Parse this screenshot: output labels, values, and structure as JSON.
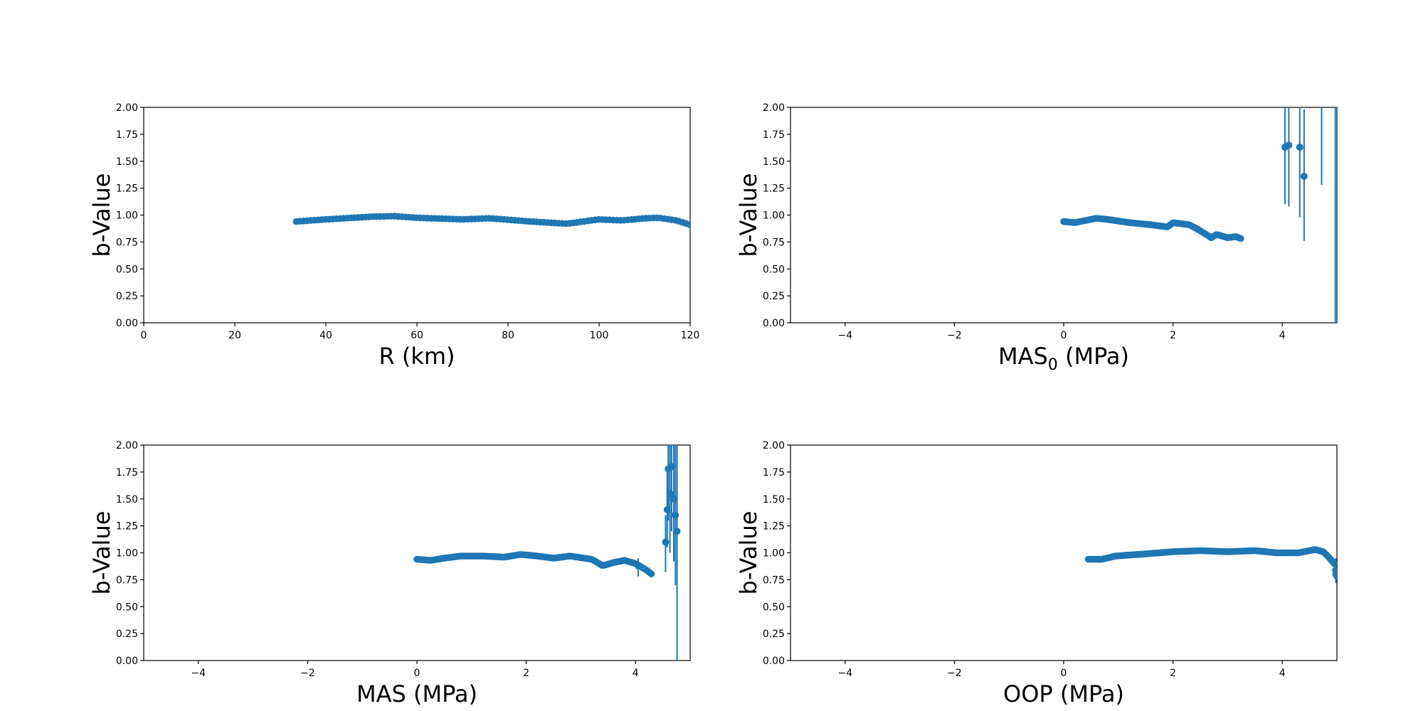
{
  "chart_data": [
    {
      "type": "scatter",
      "xlabel": "R (km)",
      "ylabel": "b-Value",
      "xlim": [
        0,
        120
      ],
      "ylim": [
        0,
        2
      ],
      "xticks": [
        0,
        20,
        40,
        60,
        80,
        100,
        120
      ],
      "yticks": [
        0.0,
        0.25,
        0.5,
        0.75,
        1.0,
        1.25,
        1.5,
        1.75,
        2.0
      ],
      "color": "#1f77b4",
      "profile": [
        [
          33.5,
          0.94
        ],
        [
          40,
          0.96
        ],
        [
          50,
          0.985
        ],
        [
          55,
          0.99
        ],
        [
          60,
          0.975
        ],
        [
          70,
          0.96
        ],
        [
          76,
          0.97
        ],
        [
          85,
          0.94
        ],
        [
          93,
          0.92
        ],
        [
          100,
          0.96
        ],
        [
          105,
          0.95
        ],
        [
          110,
          0.97
        ],
        [
          113,
          0.975
        ],
        [
          117,
          0.95
        ],
        [
          120,
          0.91
        ]
      ],
      "step": 0.8,
      "errors": []
    },
    {
      "type": "scatter",
      "xlabel": "MAS",
      "xlabel_sub": "0",
      "xlabel_suffix": " (MPa)",
      "ylabel": "b-Value",
      "xlim": [
        -5,
        5
      ],
      "ylim": [
        0,
        2
      ],
      "xticks": [
        -4,
        -2,
        0,
        2,
        4
      ],
      "yticks": [
        0.0,
        0.25,
        0.5,
        0.75,
        1.0,
        1.25,
        1.5,
        1.75,
        2.0
      ],
      "color": "#1f77b4",
      "profile": [
        [
          0,
          0.94
        ],
        [
          0.2,
          0.93
        ],
        [
          0.4,
          0.95
        ],
        [
          0.6,
          0.97
        ],
        [
          0.8,
          0.96
        ],
        [
          1.2,
          0.93
        ],
        [
          1.6,
          0.91
        ],
        [
          1.9,
          0.89
        ],
        [
          2.0,
          0.93
        ],
        [
          2.3,
          0.91
        ],
        [
          2.45,
          0.87
        ],
        [
          2.7,
          0.79
        ],
        [
          2.8,
          0.82
        ],
        [
          3.0,
          0.79
        ],
        [
          3.15,
          0.8
        ],
        [
          3.25,
          0.78
        ]
      ],
      "step": 0.03,
      "errors": [
        {
          "x": 4.05,
          "y": 1.63,
          "lo": 1.1,
          "hi": 2.0
        },
        {
          "x": 4.12,
          "y": 1.65,
          "lo": 1.08,
          "hi": 2.0
        },
        {
          "x": 4.32,
          "y": 1.63,
          "lo": 0.98,
          "hi": 2.0
        },
        {
          "x": 4.4,
          "y": 1.36,
          "lo": 0.76,
          "hi": 1.98
        },
        {
          "x": 4.72,
          "y": 2.1,
          "lo": 1.28,
          "hi": 2.0
        },
        {
          "x": 4.97,
          "y": 2.1,
          "lo": 0.0,
          "hi": 2.0
        },
        {
          "x": 5.0,
          "y": 2.1,
          "lo": 0.0,
          "hi": 2.0
        }
      ]
    },
    {
      "type": "scatter",
      "xlabel": "MAS (MPa)",
      "ylabel": "b-Value",
      "xlim": [
        -5,
        5
      ],
      "ylim": [
        0,
        2
      ],
      "xticks": [
        -4,
        -2,
        0,
        2,
        4
      ],
      "yticks": [
        0.0,
        0.25,
        0.5,
        0.75,
        1.0,
        1.25,
        1.5,
        1.75,
        2.0
      ],
      "color": "#1f77b4",
      "profile": [
        [
          0,
          0.94
        ],
        [
          0.25,
          0.93
        ],
        [
          0.5,
          0.95
        ],
        [
          0.8,
          0.97
        ],
        [
          1.2,
          0.97
        ],
        [
          1.6,
          0.96
        ],
        [
          1.9,
          0.985
        ],
        [
          2.2,
          0.97
        ],
        [
          2.5,
          0.95
        ],
        [
          2.8,
          0.97
        ],
        [
          3.2,
          0.94
        ],
        [
          3.4,
          0.88
        ],
        [
          3.6,
          0.91
        ],
        [
          3.8,
          0.93
        ],
        [
          4.0,
          0.9
        ],
        [
          4.2,
          0.84
        ],
        [
          4.3,
          0.8
        ]
      ],
      "step": 0.03,
      "errors": [
        {
          "x": 4.05,
          "y": 0.88,
          "lo": 0.78,
          "hi": 0.95
        },
        {
          "x": 4.55,
          "y": 1.1,
          "lo": 0.82,
          "hi": 1.35
        },
        {
          "x": 4.58,
          "y": 1.4,
          "lo": 1.05,
          "hi": 1.8
        },
        {
          "x": 4.6,
          "y": 1.78,
          "lo": 1.3,
          "hi": 2.0
        },
        {
          "x": 4.63,
          "y": 1.55,
          "lo": 1.0,
          "hi": 2.0
        },
        {
          "x": 4.66,
          "y": 1.8,
          "lo": 1.2,
          "hi": 2.0
        },
        {
          "x": 4.7,
          "y": 1.5,
          "lo": 0.92,
          "hi": 2.0
        },
        {
          "x": 4.73,
          "y": 1.35,
          "lo": 0.7,
          "hi": 2.0
        },
        {
          "x": 4.76,
          "y": 1.2,
          "lo": 0.0,
          "hi": 2.0
        }
      ]
    },
    {
      "type": "scatter",
      "xlabel": "OOP (MPa)",
      "ylabel": "b-Value",
      "xlim": [
        -5,
        5
      ],
      "ylim": [
        0,
        2
      ],
      "xticks": [
        -4,
        -2,
        0,
        2,
        4
      ],
      "yticks": [
        0.0,
        0.25,
        0.5,
        0.75,
        1.0,
        1.25,
        1.5,
        1.75,
        2.0
      ],
      "color": "#1f77b4",
      "profile": [
        [
          0.45,
          0.94
        ],
        [
          0.7,
          0.94
        ],
        [
          0.95,
          0.97
        ],
        [
          1.5,
          0.99
        ],
        [
          2.0,
          1.01
        ],
        [
          2.5,
          1.02
        ],
        [
          3.0,
          1.01
        ],
        [
          3.5,
          1.02
        ],
        [
          3.9,
          1.0
        ],
        [
          4.3,
          1.0
        ],
        [
          4.6,
          1.03
        ],
        [
          4.75,
          1.01
        ],
        [
          4.85,
          0.96
        ],
        [
          4.95,
          0.9
        ],
        [
          5.0,
          0.78
        ]
      ],
      "step": 0.025,
      "errors": [
        {
          "x": 4.98,
          "y": 0.8,
          "lo": 0.72,
          "hi": 0.95
        }
      ]
    }
  ]
}
